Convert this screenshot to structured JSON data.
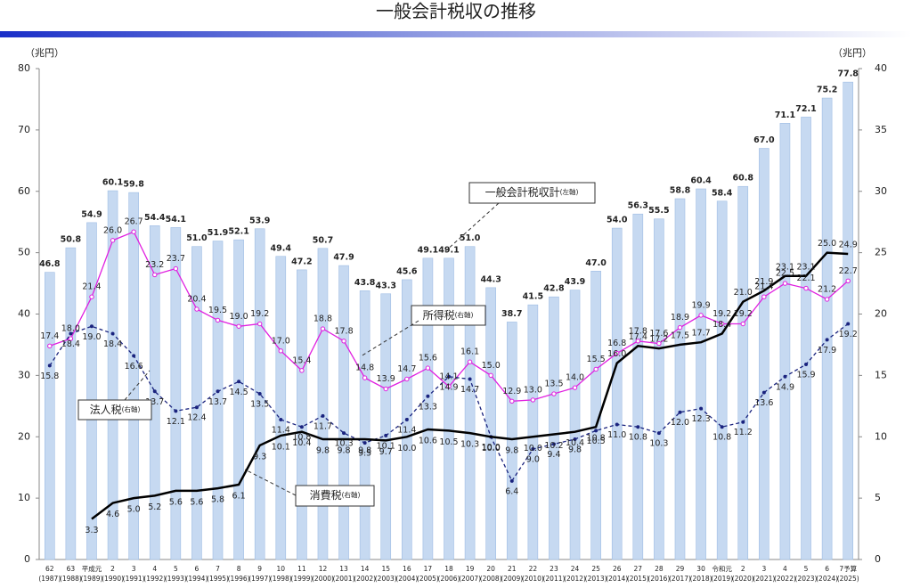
{
  "chart_data": {
    "type": "bar-line",
    "title": "一般会計税収の推移",
    "ylabel": "（兆円）",
    "y2label": "（兆円）",
    "categories": [
      "62",
      "63",
      "平成元",
      "2",
      "3",
      "4",
      "5",
      "6",
      "7",
      "8",
      "9",
      "10",
      "11",
      "12",
      "13",
      "14",
      "15",
      "16",
      "17",
      "18",
      "19",
      "20",
      "21",
      "22",
      "23",
      "24",
      "25",
      "26",
      "27",
      "28",
      "29",
      "30",
      "令和元",
      "2",
      "3",
      "4",
      "5",
      "6",
      "7予算"
    ],
    "category_years": [
      "(1987)",
      "(1988)",
      "(1989)",
      "(1990)",
      "(1991)",
      "(1992)",
      "(1993)",
      "(1994)",
      "(1995)",
      "(1996)",
      "(1997)",
      "(1998)",
      "(1999)",
      "(2000)",
      "(2001)",
      "(2002)",
      "(2003)",
      "(2004)",
      "(2005)",
      "(2006)",
      "(2007)",
      "(2008)",
      "(2009)",
      "(2010)",
      "(2011)",
      "(2012)",
      "(2013)",
      "(2014)",
      "(2015)",
      "(2016)",
      "(2017)",
      "(2018)",
      "(2019)",
      "(2020)",
      "(2021)",
      "(2022)",
      "(2023)",
      "(2024)",
      "(2025)"
    ],
    "ylim": [
      0,
      80
    ],
    "yticks": [
      0,
      10,
      20,
      30,
      40,
      50,
      60,
      70,
      80
    ],
    "y2lim": [
      0,
      40
    ],
    "y2ticks": [
      0,
      5,
      10,
      15,
      20,
      25,
      30,
      35,
      40
    ],
    "series": [
      {
        "name": "一般会計税収計",
        "axis_note": "(左軸)",
        "kind": "bar",
        "color": "#c6d9f1",
        "values": [
          46.8,
          50.8,
          54.9,
          60.1,
          59.8,
          54.4,
          54.1,
          51.0,
          51.9,
          52.1,
          53.9,
          49.4,
          47.2,
          50.7,
          47.9,
          43.8,
          43.3,
          45.6,
          49.1,
          49.1,
          51.0,
          44.3,
          38.7,
          41.5,
          42.8,
          43.9,
          47.0,
          54.0,
          56.3,
          55.5,
          58.8,
          60.4,
          58.4,
          60.8,
          67.0,
          71.1,
          72.1,
          75.2,
          77.8
        ],
        "value_labels": [
          "46.8",
          "50.8",
          "54.9",
          "60.1",
          "59.8",
          "54.4",
          "54.1",
          "51.0",
          "51.9",
          "52.1",
          "53.9",
          "49.4",
          "47.2",
          "50.7",
          "47.9",
          "43.8",
          "43.3",
          "45.6",
          "49.1",
          "49.1",
          "51.0",
          "44.3",
          "38.7",
          "41.5",
          "42.8",
          "43.9",
          "47.0",
          "54.0",
          "56.3",
          "55.5",
          "58.8",
          "60.4",
          "58.4",
          "60.8",
          "67.0",
          "71.1",
          "72.1",
          "75.2",
          "77.8"
        ]
      },
      {
        "name": "所得税",
        "axis_note": "(右軸)",
        "kind": "line",
        "axis": "y2",
        "color": "#e020e0",
        "values": [
          17.4,
          18.0,
          21.4,
          26.0,
          26.7,
          23.2,
          23.7,
          20.4,
          19.5,
          19.0,
          19.2,
          17.0,
          15.4,
          18.8,
          17.8,
          14.8,
          13.9,
          14.7,
          15.6,
          14.1,
          16.1,
          15.0,
          12.9,
          13.0,
          13.5,
          14.0,
          15.5,
          16.8,
          17.8,
          17.6,
          18.9,
          19.9,
          19.2,
          19.2,
          21.4,
          22.5,
          22.1,
          21.2,
          22.7
        ],
        "value_labels": [
          "17.4",
          "18.0",
          "21.4",
          "26.0",
          "26.7",
          "23.2",
          "23.7",
          "20.4",
          "19.5",
          "19.0",
          "19.2",
          "17.0",
          "15.4",
          "18.8",
          "17.8",
          "14.8",
          "13.9",
          "14.7",
          "15.6",
          "14.1",
          "16.1",
          "15.0",
          "12.9",
          "13.0",
          "13.5",
          "14.0",
          "15.5",
          "16.8",
          "17.8",
          "17.6",
          "18.9",
          "19.9",
          "19.2",
          "19.2",
          "21.4",
          "22.5",
          "22.1",
          "21.2",
          "22.7"
        ]
      },
      {
        "name": "法人税",
        "axis_note": "(右軸)",
        "kind": "line",
        "axis": "y2",
        "dashed": true,
        "color": "#1a237e",
        "values": [
          15.8,
          18.4,
          19.0,
          18.4,
          16.6,
          13.7,
          12.1,
          12.4,
          13.7,
          14.5,
          13.5,
          11.4,
          10.8,
          11.7,
          10.3,
          9.5,
          10.1,
          11.4,
          13.3,
          14.9,
          14.7,
          10.0,
          6.4,
          9.0,
          9.4,
          9.8,
          10.5,
          11.0,
          10.8,
          10.3,
          12.0,
          12.3,
          10.8,
          11.2,
          13.6,
          14.9,
          15.9,
          17.9,
          19.2
        ],
        "value_labels": [
          "15.8",
          "18.4",
          "19.0",
          "18.4",
          "16.6",
          "13.7",
          "12.1",
          "12.4",
          "13.7",
          "14.5",
          "13.5",
          "11.4",
          "10.8",
          "11.7",
          "10.3",
          "9.5",
          "10.1",
          "11.4",
          "13.3",
          "14.9",
          "14.7",
          "10.0",
          "6.4",
          "9.0",
          "9.4",
          "9.8",
          "10.5",
          "11.0",
          "10.8",
          "10.3",
          "12.0",
          "12.3",
          "10.8",
          "11.2",
          "13.6",
          "14.9",
          "15.9",
          "17.9",
          "19.2"
        ]
      },
      {
        "name": "消費税",
        "axis_note": "(右軸)",
        "kind": "line",
        "axis": "y2",
        "color": "#000000",
        "values": [
          null,
          null,
          3.3,
          4.6,
          5.0,
          5.2,
          5.6,
          5.6,
          5.8,
          6.1,
          9.3,
          10.1,
          10.4,
          9.8,
          9.8,
          9.8,
          9.7,
          10.0,
          10.6,
          10.5,
          10.3,
          10.0,
          9.8,
          10.0,
          10.2,
          10.4,
          10.8,
          16.0,
          17.4,
          17.2,
          17.5,
          17.7,
          18.4,
          21.0,
          21.9,
          23.1,
          23.1,
          25.0,
          24.9
        ],
        "value_labels": [
          null,
          null,
          "3.3",
          "4.6",
          "5.0",
          "5.2",
          "5.6",
          "5.6",
          "5.8",
          "6.1",
          "9.3",
          "10.1",
          "10.4",
          "9.8",
          "9.8",
          "9.8",
          "9.7",
          "10.0",
          "10.6",
          "10.5",
          "10.3",
          "10.0",
          "9.8",
          "10.0",
          "10.2",
          "10.4",
          "10.8",
          "16.0",
          "17.4",
          "17.2",
          "17.5",
          "17.7",
          "18.4",
          "21.0",
          "21.9",
          "23.1",
          "23.1",
          "25.0",
          "24.9"
        ]
      }
    ]
  }
}
